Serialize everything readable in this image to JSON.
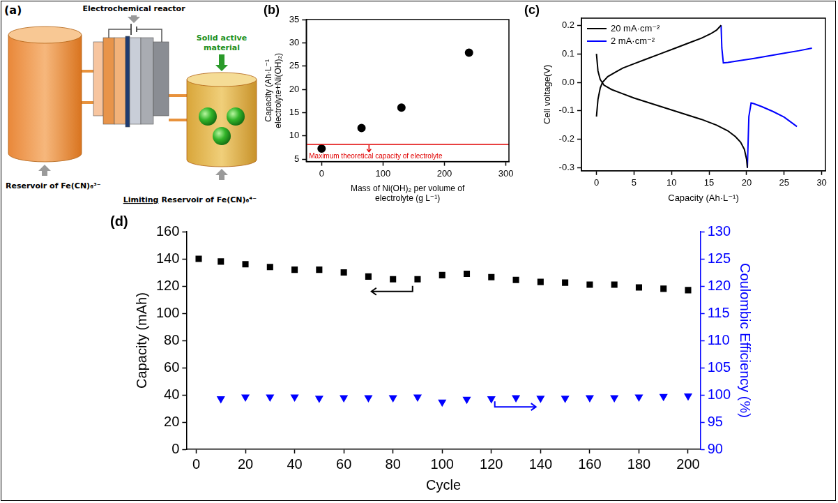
{
  "diagram": {
    "label": "(a)",
    "reactor": "Electrochemical reactor",
    "solid_material": "Solid active material",
    "reservoir_left": "Reservoir of Fe(CN)₆³⁻",
    "reservoir_right": {
      "underlined": "Limiting",
      "text": "Reservoir of Fe(CN)₆⁴⁻"
    }
  },
  "chart_data": [
    {
      "type": "scatter",
      "title": "(b)",
      "x_label": "Mass of Ni(OH)₂ per volume of electrolyte (g L⁻¹)",
      "y_label": "Capacity (Ah·L⁻¹ electrolyte+Ni(OH)₂)",
      "x": [
        0,
        65,
        130,
        240
      ],
      "values": [
        7.3,
        11.7,
        16.1,
        27.9
      ],
      "color": "#000000",
      "marker": "circle",
      "xlim": [
        -25,
        305
      ],
      "xticks": [
        0,
        100,
        200,
        300
      ],
      "ylim": [
        4.5,
        35
      ],
      "yticks": [
        5,
        10,
        15,
        20,
        25,
        30,
        35
      ],
      "grid": false,
      "annotations": [
        {
          "text": "Maximum theoretical capacity of electrolyte",
          "y": 8.2,
          "color": "#e00000"
        }
      ]
    },
    {
      "type": "line",
      "title": "(c)",
      "x_label": "Capacity (Ah·L⁻¹)",
      "y_label": "Cell voltage(V)",
      "xlim": [
        -2,
        30.5
      ],
      "xticks": [
        0,
        5,
        10,
        15,
        20,
        25,
        30
      ],
      "ylim": [
        -0.31,
        0.225
      ],
      "yticks": [
        -0.3,
        -0.2,
        -0.1,
        {
          "value": 0,
          "label": "0.0"
        },
        0.1,
        0.2
      ],
      "grid": false,
      "legend": "top-left",
      "series": [
        {
          "name": "20 mA·cm⁻²",
          "color": "#000000",
          "x": [
            0,
            0.2,
            0.5,
            0.8,
            1.5,
            2.5,
            3.5,
            5,
            6.5,
            8.5,
            10.5,
            12.5,
            14,
            15.2,
            16,
            16.6,
            null,
            0,
            0.2,
            0.5,
            1,
            2,
            3,
            5,
            8,
            11,
            14,
            16,
            17.5,
            18.5,
            19.2,
            19.7,
            20,
            20.1
          ],
          "values": [
            -0.12,
            -0.06,
            -0.02,
            0.0,
            0.02,
            0.035,
            0.05,
            0.065,
            0.08,
            0.1,
            0.12,
            0.14,
            0.155,
            0.17,
            0.183,
            0.2,
            null,
            0.1,
            0.04,
            0.01,
            -0.01,
            -0.025,
            -0.035,
            -0.055,
            -0.08,
            -0.105,
            -0.13,
            -0.15,
            -0.17,
            -0.19,
            -0.21,
            -0.235,
            -0.27,
            -0.3
          ]
        },
        {
          "name": "2 mA·cm⁻²",
          "color": "#0000ff",
          "x": [
            16.6,
            16.7,
            16.9,
            17.5,
            19,
            21,
            23,
            25,
            27,
            28.7,
            null,
            20.1,
            20.3,
            20.6,
            21,
            22,
            23.5,
            25,
            26.7
          ],
          "values": [
            0.2,
            0.12,
            0.068,
            0.07,
            0.076,
            0.084,
            0.093,
            0.102,
            0.111,
            0.12,
            null,
            -0.3,
            -0.12,
            -0.072,
            -0.075,
            -0.085,
            -0.102,
            -0.122,
            -0.155
          ]
        }
      ]
    },
    {
      "type": "scatter",
      "title": "(d)",
      "x_label": "Cycle",
      "y_label": "Capacity (mAh)",
      "y2_label": "Coulombic Efficiency (%)",
      "xlim": [
        -4,
        205
      ],
      "xticks": [
        0,
        20,
        40,
        60,
        80,
        100,
        120,
        140,
        160,
        180,
        200
      ],
      "ylim": [
        0,
        160
      ],
      "yticks": [
        0,
        20,
        40,
        60,
        80,
        100,
        120,
        140,
        160
      ],
      "y2lim": [
        90,
        130
      ],
      "y2ticks": [
        90,
        95,
        100,
        105,
        110,
        115,
        120,
        125,
        130
      ],
      "grid": false,
      "series": [
        {
          "color": "#000000",
          "marker": "square",
          "x": [
            1,
            10,
            20,
            30,
            40,
            50,
            60,
            70,
            80,
            90,
            100,
            110,
            120,
            130,
            140,
            150,
            160,
            170,
            180,
            190,
            200
          ],
          "values": [
            140,
            138,
            136,
            134,
            132,
            132,
            130,
            127,
            125,
            125,
            128,
            129,
            126.5,
            124.5,
            123,
            122.5,
            121,
            121,
            119,
            118,
            117
          ]
        },
        {
          "color": "#0000ff",
          "marker": "triangle-down",
          "axis": "y2",
          "x": [
            10,
            20,
            30,
            40,
            50,
            60,
            70,
            80,
            90,
            100,
            110,
            120,
            130,
            140,
            150,
            160,
            170,
            180,
            190,
            200
          ],
          "values": [
            99.3,
            99.6,
            99.6,
            99.6,
            99.4,
            99.5,
            99.5,
            99.5,
            99.6,
            98.7,
            99.2,
            99.3,
            99.5,
            99.4,
            99.4,
            99.5,
            99.5,
            99.6,
            99.7,
            99.8
          ]
        }
      ]
    }
  ]
}
